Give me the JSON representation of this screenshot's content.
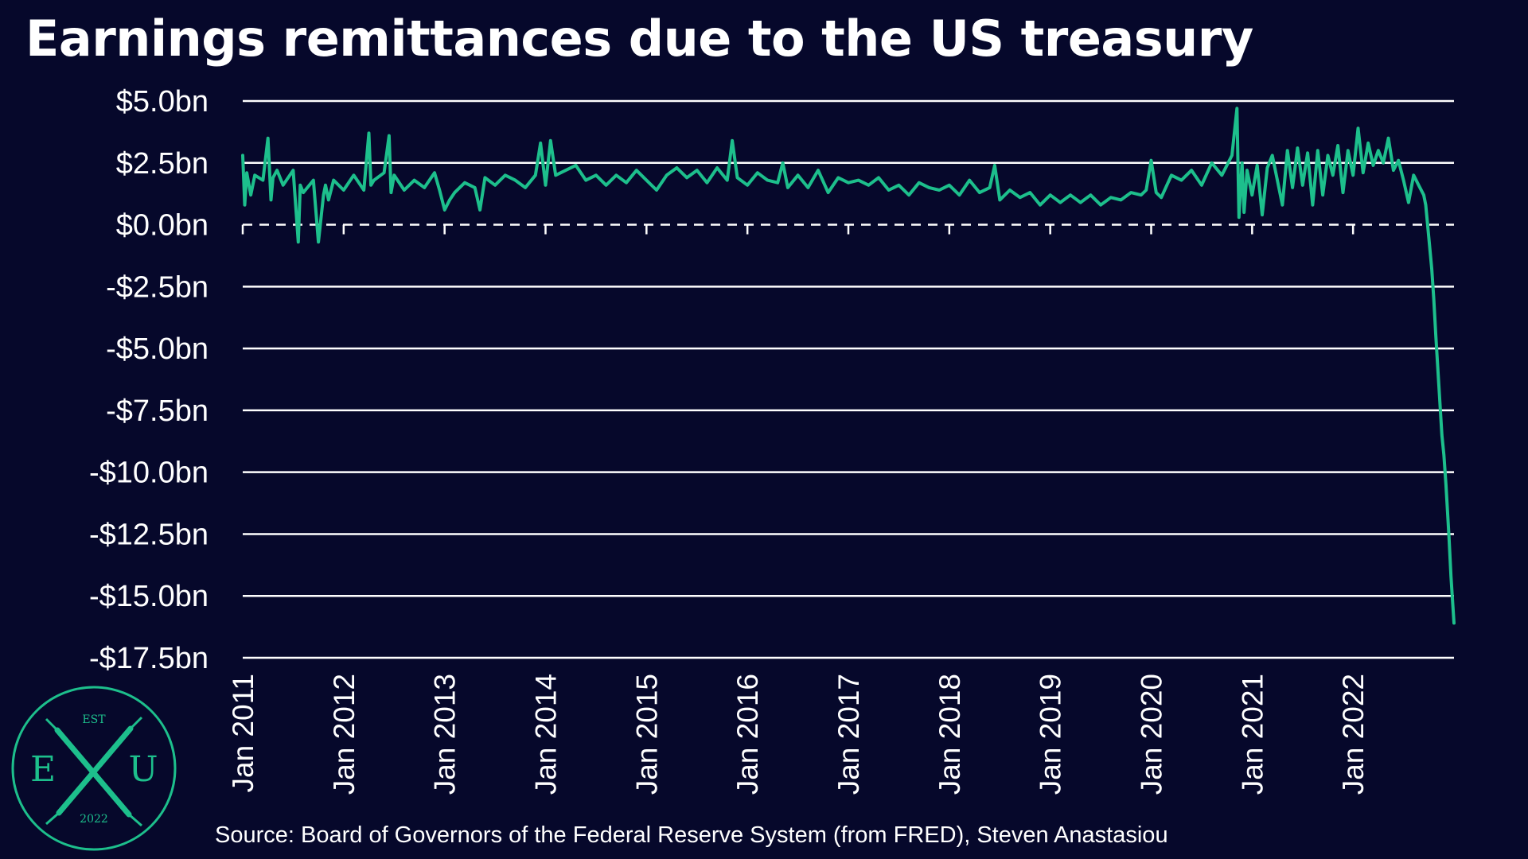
{
  "title": "Earnings remittances due to the US treasury",
  "source": "Source: Board of Governors of the Federal Reserve System (from FRED), Steven Anastasiou",
  "colors": {
    "background": "#06082b",
    "line": "#1dbf8c",
    "grid": "#ffffff",
    "text": "#ffffff"
  },
  "logo": {
    "top_text": "EST",
    "left_letter": "E",
    "right_letter": "U",
    "bottom_text": "2022",
    "icon": "crossed-swords-icon"
  },
  "chart_data": {
    "type": "line",
    "title": "Earnings remittances due to the US treasury",
    "xlabel": "",
    "ylabel": "",
    "x_start": "2011-01",
    "x_end": "2022-12",
    "xlim": [
      2011.0,
      2023.0
    ],
    "ylim": [
      -17.5,
      5.0
    ],
    "yticks": [
      5.0,
      2.5,
      0.0,
      -2.5,
      -5.0,
      -7.5,
      -10.0,
      -12.5,
      -15.0,
      -17.5
    ],
    "ytick_labels": [
      "$5.0bn",
      "$2.5bn",
      "$0.0bn",
      "-$2.5bn",
      "-$5.0bn",
      "-$7.5bn",
      "-$10.0bn",
      "-$12.5bn",
      "-$15.0bn",
      "-$17.5bn"
    ],
    "xticks": [
      2011,
      2012,
      2013,
      2014,
      2015,
      2016,
      2017,
      2018,
      2019,
      2020,
      2021,
      2022
    ],
    "xtick_labels": [
      "Jan 2011",
      "Jan 2012",
      "Jan 2013",
      "Jan 2014",
      "Jan 2015",
      "Jan 2016",
      "Jan 2017",
      "Jan 2018",
      "Jan 2019",
      "Jan 2020",
      "Jan 2021",
      "Jan 2022"
    ],
    "zero_line": "dashed",
    "grid": true,
    "legend": "none",
    "series": [
      {
        "values_weekly_note_excluded": true,
        "x": [
          2011.0,
          2011.02,
          2011.04,
          2011.08,
          2011.12,
          2011.2,
          2011.25,
          2011.28,
          2011.3,
          2011.34,
          2011.4,
          2011.5,
          2011.55,
          2011.57,
          2011.6,
          2011.7,
          2011.75,
          2011.8,
          2011.82,
          2011.85,
          2011.9,
          2012.0,
          2012.1,
          2012.2,
          2012.25,
          2012.27,
          2012.3,
          2012.4,
          2012.45,
          2012.47,
          2012.5,
          2012.6,
          2012.7,
          2012.8,
          2012.9,
          2012.95,
          2013.0,
          2013.05,
          2013.1,
          2013.2,
          2013.3,
          2013.35,
          2013.4,
          2013.5,
          2013.6,
          2013.7,
          2013.8,
          2013.9,
          2013.95,
          2014.0,
          2014.05,
          2014.1,
          2014.2,
          2014.3,
          2014.4,
          2014.5,
          2014.6,
          2014.7,
          2014.8,
          2014.9,
          2015.0,
          2015.1,
          2015.2,
          2015.3,
          2015.4,
          2015.5,
          2015.6,
          2015.7,
          2015.8,
          2015.85,
          2015.9,
          2016.0,
          2016.1,
          2016.2,
          2016.3,
          2016.35,
          2016.4,
          2016.5,
          2016.6,
          2016.7,
          2016.8,
          2016.9,
          2017.0,
          2017.1,
          2017.2,
          2017.3,
          2017.4,
          2017.5,
          2017.6,
          2017.7,
          2017.8,
          2017.9,
          2018.0,
          2018.1,
          2018.2,
          2018.3,
          2018.4,
          2018.45,
          2018.5,
          2018.6,
          2018.7,
          2018.8,
          2018.9,
          2019.0,
          2019.1,
          2019.2,
          2019.3,
          2019.4,
          2019.5,
          2019.6,
          2019.7,
          2019.8,
          2019.9,
          2019.95,
          2020.0,
          2020.05,
          2020.1,
          2020.2,
          2020.3,
          2020.4,
          2020.5,
          2020.6,
          2020.7,
          2020.8,
          2020.85,
          2020.87,
          2020.9,
          2020.92,
          2020.95,
          2021.0,
          2021.05,
          2021.1,
          2021.15,
          2021.2,
          2021.3,
          2021.35,
          2021.4,
          2021.45,
          2021.5,
          2021.55,
          2021.6,
          2021.65,
          2021.7,
          2021.75,
          2021.8,
          2021.85,
          2021.9,
          2021.95,
          2022.0,
          2022.05,
          2022.1,
          2022.15,
          2022.2,
          2022.25,
          2022.3,
          2022.35,
          2022.4,
          2022.45,
          2022.5,
          2022.55,
          2022.6,
          2022.65,
          2022.7,
          2022.72,
          2022.75,
          2022.78,
          2022.8,
          2022.82,
          2022.85,
          2022.88,
          2022.9,
          2022.92,
          2022.95,
          2022.97,
          2023.0
        ],
        "values": [
          2.8,
          0.8,
          2.1,
          1.2,
          2.0,
          1.8,
          3.5,
          1.0,
          1.9,
          2.2,
          1.6,
          2.2,
          -0.7,
          1.6,
          1.3,
          1.8,
          -0.7,
          1.2,
          1.6,
          1.0,
          1.8,
          1.4,
          2.0,
          1.4,
          3.7,
          1.6,
          1.8,
          2.1,
          3.6,
          1.3,
          2.0,
          1.4,
          1.8,
          1.5,
          2.1,
          1.4,
          0.6,
          1.0,
          1.3,
          1.7,
          1.5,
          0.6,
          1.9,
          1.6,
          2.0,
          1.8,
          1.5,
          2.0,
          3.3,
          1.6,
          3.4,
          2.0,
          2.2,
          2.4,
          1.8,
          2.0,
          1.6,
          2.0,
          1.7,
          2.2,
          1.8,
          1.4,
          2.0,
          2.3,
          1.9,
          2.2,
          1.7,
          2.3,
          1.8,
          3.4,
          1.9,
          1.6,
          2.1,
          1.8,
          1.7,
          2.5,
          1.5,
          2.0,
          1.5,
          2.2,
          1.3,
          1.9,
          1.7,
          1.8,
          1.6,
          1.9,
          1.4,
          1.6,
          1.2,
          1.7,
          1.5,
          1.4,
          1.6,
          1.2,
          1.8,
          1.3,
          1.5,
          2.4,
          1.0,
          1.4,
          1.1,
          1.3,
          0.8,
          1.2,
          0.9,
          1.2,
          0.9,
          1.2,
          0.8,
          1.1,
          1.0,
          1.3,
          1.2,
          1.4,
          2.6,
          1.3,
          1.1,
          2.0,
          1.8,
          2.2,
          1.6,
          2.5,
          2.0,
          2.8,
          4.7,
          0.3,
          2.5,
          0.5,
          2.2,
          1.2,
          2.4,
          0.4,
          2.3,
          2.8,
          0.8,
          3.0,
          1.5,
          3.1,
          1.6,
          2.9,
          0.8,
          3.0,
          1.2,
          2.8,
          2.0,
          3.2,
          1.3,
          3.0,
          2.0,
          3.9,
          2.1,
          3.3,
          2.4,
          3.0,
          2.5,
          3.5,
          2.2,
          2.6,
          1.8,
          0.9,
          2.0,
          1.6,
          1.2,
          0.8,
          -0.5,
          -1.8,
          -3.0,
          -4.5,
          -6.5,
          -8.5,
          -9.3,
          -10.5,
          -12.6,
          -14.2,
          -16.1
        ]
      }
    ]
  }
}
